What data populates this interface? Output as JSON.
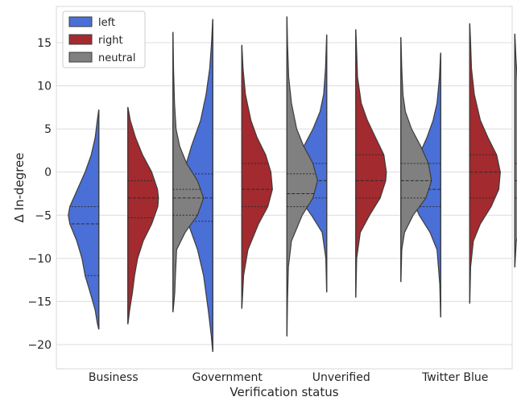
{
  "chart_data": {
    "type": "violin",
    "xlabel": "Verification status",
    "ylabel": "Δ In-degree",
    "ylim": [
      -22.8,
      19.2
    ],
    "yticks": [
      -20,
      -15,
      -10,
      -5,
      0,
      5,
      10,
      15
    ],
    "grid": "horizontal",
    "legend_position": "top-left",
    "categories": [
      "Business",
      "Government",
      "Unverified",
      "Twitter Blue"
    ],
    "series": [
      {
        "name": "left",
        "color": "#4a6fd6",
        "violins": [
          {
            "range": [
              -18.2,
              7.2
            ],
            "q1": -12.0,
            "median": -6.0,
            "q3": -4.0,
            "profile": [
              [
                -18.2,
                0.005
              ],
              [
                -17.5,
                0.05
              ],
              [
                -16,
                0.12
              ],
              [
                -14,
                0.28
              ],
              [
                -12,
                0.45
              ],
              [
                -10,
                0.55
              ],
              [
                -8,
                0.72
              ],
              [
                -6,
                0.95
              ],
              [
                -5,
                1.0
              ],
              [
                -4,
                0.95
              ],
              [
                -2,
                0.7
              ],
              [
                0,
                0.45
              ],
              [
                2,
                0.25
              ],
              [
                4,
                0.12
              ],
              [
                6,
                0.05
              ],
              [
                7.2,
                0.005
              ]
            ]
          },
          {
            "range": [
              -20.8,
              17.7
            ],
            "q1": -5.7,
            "median": -3.0,
            "q3": -0.2,
            "profile": [
              [
                -20.8,
                0.005
              ],
              [
                -19,
                0.05
              ],
              [
                -16,
                0.15
              ],
              [
                -12,
                0.3
              ],
              [
                -9,
                0.5
              ],
              [
                -6,
                0.8
              ],
              [
                -3,
                1.0
              ],
              [
                0,
                0.95
              ],
              [
                3,
                0.7
              ],
              [
                6,
                0.4
              ],
              [
                9,
                0.22
              ],
              [
                12,
                0.1
              ],
              [
                15,
                0.04
              ],
              [
                17.7,
                0.005
              ]
            ]
          },
          {
            "range": [
              -13.9,
              15.9
            ],
            "q1": -3.0,
            "median": -1.0,
            "q3": 1.0,
            "profile": [
              [
                -13.9,
                0.005
              ],
              [
                -10,
                0.03
              ],
              [
                -7,
                0.15
              ],
              [
                -5,
                0.5
              ],
              [
                -3,
                0.9
              ],
              [
                -1,
                1.0
              ],
              [
                1,
                0.95
              ],
              [
                3,
                0.75
              ],
              [
                5,
                0.45
              ],
              [
                7,
                0.22
              ],
              [
                9,
                0.1
              ],
              [
                12,
                0.04
              ],
              [
                15.9,
                0.005
              ]
            ]
          },
          {
            "range": [
              -16.8,
              13.8
            ],
            "q1": -4.0,
            "median": -2.0,
            "q3": 1.0,
            "profile": [
              [
                -16.8,
                0.005
              ],
              [
                -13,
                0.03
              ],
              [
                -9,
                0.12
              ],
              [
                -7,
                0.35
              ],
              [
                -5,
                0.7
              ],
              [
                -3,
                0.95
              ],
              [
                -2,
                1.0
              ],
              [
                0,
                0.9
              ],
              [
                2,
                0.7
              ],
              [
                4,
                0.45
              ],
              [
                6,
                0.25
              ],
              [
                8,
                0.12
              ],
              [
                11,
                0.04
              ],
              [
                13.8,
                0.005
              ]
            ]
          }
        ]
      },
      {
        "name": "right",
        "color": "#a32a2f",
        "violins": [
          {
            "range": [
              -17.6,
              7.5
            ],
            "q1": -5.3,
            "median": -3.0,
            "q3": -1.0,
            "profile": [
              [
                -17.6,
                0.005
              ],
              [
                -16,
                0.06
              ],
              [
                -14,
                0.15
              ],
              [
                -12,
                0.22
              ],
              [
                -10,
                0.32
              ],
              [
                -8,
                0.5
              ],
              [
                -6,
                0.78
              ],
              [
                -4,
                0.98
              ],
              [
                -3,
                1.0
              ],
              [
                -2,
                0.97
              ],
              [
                0,
                0.78
              ],
              [
                2,
                0.48
              ],
              [
                4,
                0.25
              ],
              [
                6,
                0.08
              ],
              [
                7.5,
                0.005
              ]
            ]
          },
          {
            "range": [
              -15.8,
              14.7
            ],
            "q1": -4.0,
            "median": -2.0,
            "q3": 1.0,
            "profile": [
              [
                -15.8,
                0.005
              ],
              [
                -12,
                0.06
              ],
              [
                -9,
                0.2
              ],
              [
                -6,
                0.55
              ],
              [
                -4,
                0.85
              ],
              [
                -2,
                1.0
              ],
              [
                0,
                0.95
              ],
              [
                2,
                0.78
              ],
              [
                4,
                0.5
              ],
              [
                6,
                0.3
              ],
              [
                9,
                0.12
              ],
              [
                12,
                0.04
              ],
              [
                14.7,
                0.005
              ]
            ]
          },
          {
            "range": [
              -14.5,
              16.5
            ],
            "q1": -3.0,
            "median": -1.0,
            "q3": 2.0,
            "profile": [
              [
                -14.5,
                0.005
              ],
              [
                -10,
                0.03
              ],
              [
                -7,
                0.15
              ],
              [
                -5,
                0.45
              ],
              [
                -3,
                0.8
              ],
              [
                -1,
                0.98
              ],
              [
                0,
                1.0
              ],
              [
                2,
                0.92
              ],
              [
                4,
                0.65
              ],
              [
                6,
                0.38
              ],
              [
                8,
                0.18
              ],
              [
                11,
                0.06
              ],
              [
                14,
                0.03
              ],
              [
                16.5,
                0.005
              ]
            ]
          },
          {
            "range": [
              -15.2,
              17.2
            ],
            "q1": -3.0,
            "median": 0.0,
            "q3": 2.0,
            "profile": [
              [
                -15.2,
                0.005
              ],
              [
                -11,
                0.03
              ],
              [
                -8,
                0.12
              ],
              [
                -6,
                0.35
              ],
              [
                -4,
                0.7
              ],
              [
                -2,
                0.95
              ],
              [
                0,
                1.0
              ],
              [
                2,
                0.88
              ],
              [
                4,
                0.6
              ],
              [
                6,
                0.35
              ],
              [
                9,
                0.15
              ],
              [
                12,
                0.06
              ],
              [
                15,
                0.03
              ],
              [
                17.2,
                0.005
              ]
            ]
          }
        ]
      },
      {
        "name": "neutral",
        "color": "#808080",
        "violins": [
          {
            "range": [
              -16.2,
              16.2
            ],
            "q1": -5.0,
            "median": -3.0,
            "q3": -2.0,
            "profile": [
              [
                -16.2,
                0.005
              ],
              [
                -14,
                0.06
              ],
              [
                -12,
                0.08
              ],
              [
                -9,
                0.12
              ],
              [
                -7,
                0.4
              ],
              [
                -5,
                0.8
              ],
              [
                -3,
                1.0
              ],
              [
                -1,
                0.8
              ],
              [
                1,
                0.45
              ],
              [
                3,
                0.22
              ],
              [
                5,
                0.1
              ],
              [
                8,
                0.05
              ],
              [
                12,
                0.02
              ],
              [
                16.2,
                0.005
              ]
            ]
          },
          {
            "range": [
              -19.0,
              18.0
            ],
            "q1": -4.0,
            "median": -2.5,
            "q3": -0.2,
            "profile": [
              [
                -19,
                0.005
              ],
              [
                -15,
                0.02
              ],
              [
                -11,
                0.05
              ],
              [
                -8,
                0.15
              ],
              [
                -5,
                0.5
              ],
              [
                -3,
                0.85
              ],
              [
                -1,
                1.0
              ],
              [
                1,
                0.85
              ],
              [
                3,
                0.55
              ],
              [
                5,
                0.32
              ],
              [
                8,
                0.15
              ],
              [
                11,
                0.06
              ],
              [
                15,
                0.02
              ],
              [
                18,
                0.005
              ]
            ]
          },
          {
            "range": [
              -12.7,
              15.6
            ],
            "q1": -3.0,
            "median": -1.0,
            "q3": 1.0,
            "profile": [
              [
                -12.7,
                0.005
              ],
              [
                -9,
                0.03
              ],
              [
                -7,
                0.12
              ],
              [
                -5,
                0.4
              ],
              [
                -3,
                0.82
              ],
              [
                -1,
                1.0
              ],
              [
                1,
                0.9
              ],
              [
                3,
                0.65
              ],
              [
                5,
                0.35
              ],
              [
                7,
                0.15
              ],
              [
                9,
                0.07
              ],
              [
                12,
                0.03
              ],
              [
                15.6,
                0.005
              ]
            ]
          },
          {
            "range": [
              -11.0,
              16.0
            ],
            "q1": -3.0,
            "median": -1.0,
            "q3": 1.0,
            "profile": [
              [
                -11,
                0.005
              ],
              [
                -8,
                0.05
              ],
              [
                -6,
                0.25
              ],
              [
                -4,
                0.7
              ],
              [
                -2,
                0.95
              ],
              [
                -1,
                1.0
              ],
              [
                1,
                0.85
              ],
              [
                3,
                0.6
              ],
              [
                5,
                0.38
              ],
              [
                7,
                0.22
              ],
              [
                10,
                0.1
              ],
              [
                13,
                0.04
              ],
              [
                16,
                0.005
              ]
            ]
          }
        ]
      }
    ]
  }
}
